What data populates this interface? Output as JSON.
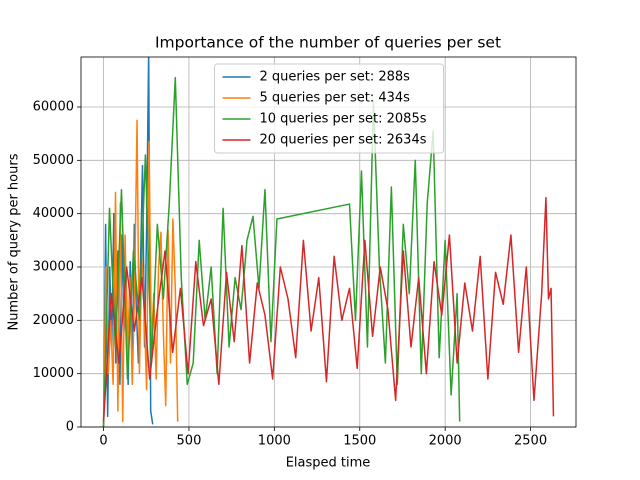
{
  "chart_data": {
    "type": "line",
    "title": "Importance of the number of queries per set",
    "xlabel": "Elasped time",
    "ylabel": "Number of query per hours",
    "xlim": [
      -132,
      2766
    ],
    "ylim": [
      0,
      69375
    ],
    "xticks": [
      0,
      500,
      1000,
      1500,
      2000,
      2500
    ],
    "yticks": [
      0,
      10000,
      20000,
      30000,
      40000,
      50000,
      60000
    ],
    "grid": true,
    "legend": "upper center",
    "series": [
      {
        "name": "2 queries per set: 288s",
        "color": "#1f77b4",
        "x": [
          0,
          12,
          24,
          36,
          48,
          60,
          72,
          84,
          96,
          108,
          120,
          132,
          144,
          156,
          168,
          180,
          192,
          204,
          216,
          228,
          240,
          252,
          264,
          276,
          288
        ],
        "values": [
          0,
          38000,
          2000,
          30000,
          15000,
          40000,
          12000,
          33000,
          8000,
          36000,
          18000,
          29000,
          8000,
          31000,
          10000,
          38000,
          22000,
          12000,
          30000,
          49000,
          15000,
          37000,
          70000,
          3000,
          500
        ]
      },
      {
        "name": "5 queries per set: 434s",
        "color": "#ff7f0e",
        "x": [
          0,
          14,
          28,
          42,
          56,
          70,
          84,
          98,
          112,
          126,
          140,
          154,
          168,
          182,
          196,
          210,
          224,
          238,
          252,
          266,
          280,
          294,
          308,
          322,
          336,
          350,
          364,
          378,
          392,
          406,
          420,
          434
        ],
        "values": [
          0,
          30000,
          10000,
          20000,
          8000,
          44000,
          3000,
          42000,
          1000,
          36000,
          12000,
          28000,
          8000,
          26000,
          57500,
          10000,
          32000,
          22000,
          7000,
          53500,
          15000,
          25000,
          9000,
          30000,
          36500,
          18000,
          4000,
          37000,
          12000,
          39000,
          26000,
          1000
        ]
      },
      {
        "name": "10 queries per set: 2085s",
        "color": "#2ca02c",
        "x": [
          0,
          35,
          70,
          105,
          140,
          175,
          210,
          245,
          280,
          315,
          350,
          385,
          420,
          455,
          490,
          525,
          560,
          595,
          630,
          665,
          700,
          735,
          770,
          805,
          840,
          875,
          910,
          945,
          980,
          1015,
          1440,
          1475,
          1510,
          1545,
          1580,
          1615,
          1650,
          1685,
          1720,
          1755,
          1790,
          1825,
          1860,
          1895,
          1930,
          1965,
          2000,
          2035,
          2070,
          2085
        ],
        "values": [
          0,
          41000,
          15000,
          44500,
          9000,
          33000,
          20000,
          51000,
          12000,
          38000,
          24000,
          42000,
          65500,
          28000,
          8000,
          12000,
          35000,
          20000,
          30000,
          10000,
          41000,
          15000,
          28000,
          22000,
          35000,
          39500,
          26000,
          44500,
          16000,
          39000,
          41800,
          20000,
          48000,
          15000,
          61000,
          30000,
          12000,
          45000,
          8000,
          38000,
          25000,
          50000,
          10000,
          42000,
          55500,
          13000,
          35000,
          6000,
          25000,
          1000
        ]
      },
      {
        "name": "20 queries per set: 2634s",
        "color": "#d62728",
        "x": [
          0,
          45,
          90,
          135,
          180,
          225,
          270,
          315,
          360,
          405,
          450,
          495,
          540,
          585,
          630,
          675,
          720,
          765,
          810,
          855,
          900,
          945,
          990,
          1035,
          1080,
          1125,
          1170,
          1215,
          1260,
          1305,
          1350,
          1395,
          1440,
          1485,
          1530,
          1575,
          1620,
          1665,
          1710,
          1755,
          1800,
          1845,
          1890,
          1935,
          1980,
          2025,
          2070,
          2115,
          2160,
          2205,
          2250,
          2295,
          2340,
          2385,
          2430,
          2475,
          2520,
          2565,
          2590,
          2605,
          2620,
          2634
        ],
        "values": [
          1000,
          25000,
          12000,
          30000,
          18000,
          28000,
          9000,
          22000,
          33000,
          14000,
          26000,
          10000,
          31000,
          19000,
          24000,
          8000,
          29000,
          16000,
          34000,
          12000,
          27000,
          21000,
          9000,
          30000,
          24000,
          13000,
          35000,
          18000,
          28000,
          8500,
          32000,
          20000,
          26000,
          11000,
          35000,
          17000,
          30000,
          22000,
          5000,
          33000,
          15000,
          28000,
          10000,
          31000,
          21000,
          36000,
          12000,
          27000,
          18000,
          32000,
          9000,
          29000,
          23000,
          36000,
          14000,
          30000,
          5000,
          25000,
          43000,
          24000,
          26000,
          2000
        ]
      }
    ]
  }
}
